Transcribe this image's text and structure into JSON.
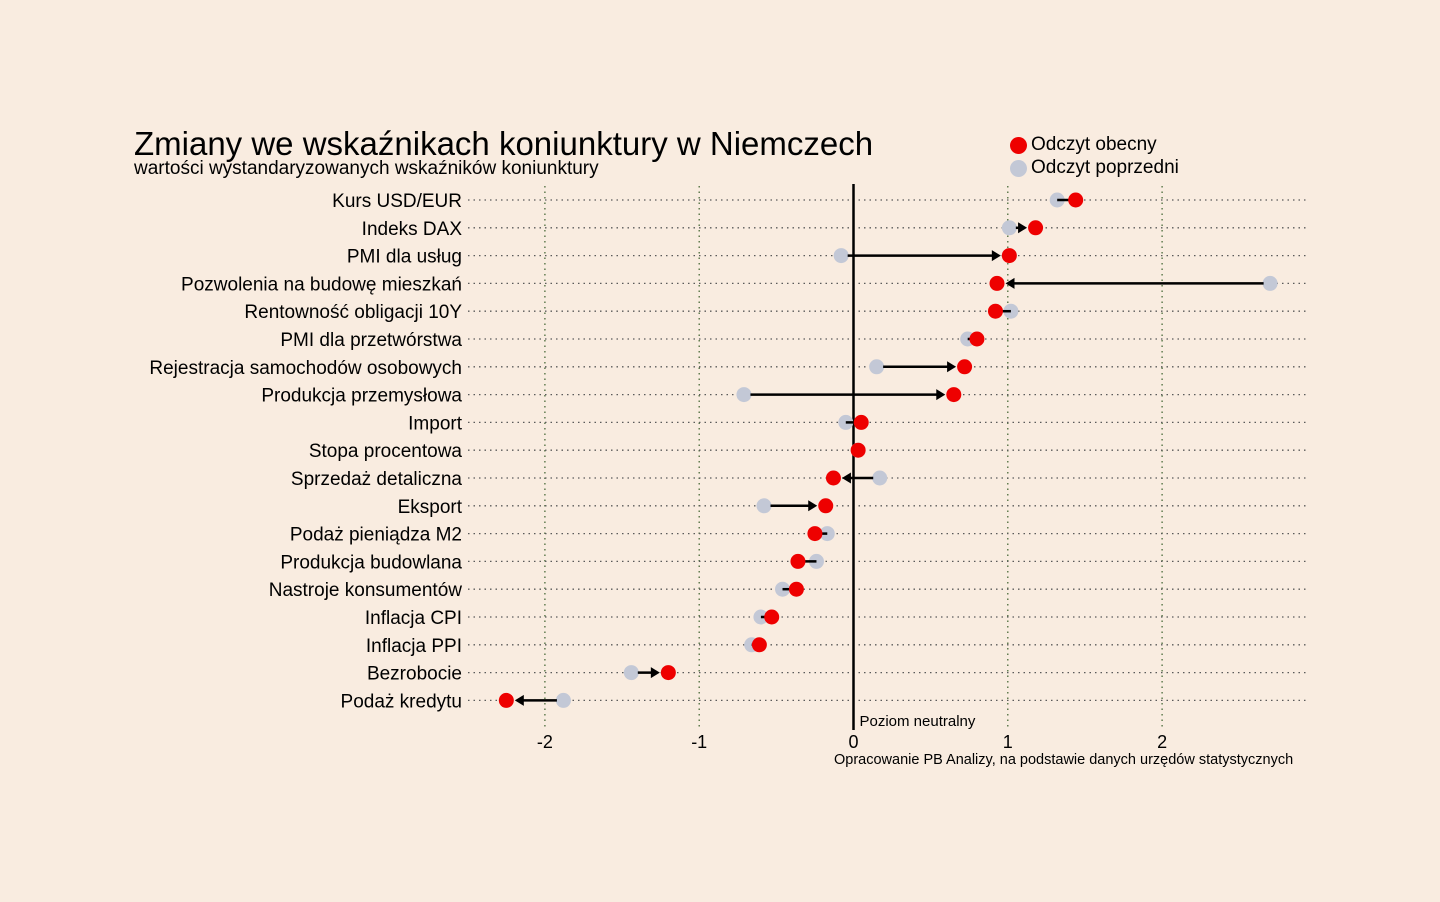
{
  "title": "Zmiany we wskaźnikach koniunktury w Niemczech",
  "subtitle": "wartości wystandaryzowanych wskaźników koniunktury",
  "source": "Opracowanie PB Analizy, na podstawie danych urzędów statystycznych",
  "legend": {
    "current_label": "Odczyt obecny",
    "previous_label": "Odczyt poprzedni"
  },
  "colors": {
    "background": "#f9ece0",
    "current": "#ee0000",
    "previous": "#c3c8d6",
    "line": "#000000"
  },
  "chart_data": {
    "type": "dumbbell",
    "title": "Zmiany we wskaźnikach koniunktury w Niemczech",
    "subtitle": "wartości wystandaryzowanych wskaźników koniunktury",
    "xlim": [
      -2.45,
      2.95
    ],
    "xticks": [
      -2,
      -1,
      0,
      1,
      2
    ],
    "xtick_labels": [
      "-2",
      "-1",
      "0",
      "1",
      "2"
    ],
    "reference_line": {
      "x": 0,
      "label": "Poziom neutralny"
    },
    "grid": "dotted",
    "legend_position": "top-right",
    "series": [
      {
        "name": "Odczyt obecny",
        "key": "current"
      },
      {
        "name": "Odczyt poprzedni",
        "key": "previous"
      }
    ],
    "rows": [
      {
        "label": "Kurs USD/EUR",
        "previous": 1.32,
        "current": 1.44
      },
      {
        "label": "Indeks DAX",
        "previous": 1.01,
        "current": 1.18
      },
      {
        "label": "PMI dla usług",
        "previous": -0.08,
        "current": 1.01
      },
      {
        "label": "Pozwolenia na budowę mieszkań",
        "previous": 2.7,
        "current": 0.93
      },
      {
        "label": "Rentowność obligacji 10Y",
        "previous": 1.02,
        "current": 0.92
      },
      {
        "label": "PMI dla przetwórstwa",
        "previous": 0.74,
        "current": 0.8
      },
      {
        "label": "Rejestracja samochodów osobowych",
        "previous": 0.15,
        "current": 0.72
      },
      {
        "label": "Produkcja przemysłowa",
        "previous": -0.71,
        "current": 0.65
      },
      {
        "label": "Import",
        "previous": -0.05,
        "current": 0.05
      },
      {
        "label": "Stopa procentowa",
        "previous": 0.03,
        "current": 0.03
      },
      {
        "label": "Sprzedaż detaliczna",
        "previous": 0.17,
        "current": -0.13
      },
      {
        "label": "Eksport",
        "previous": -0.58,
        "current": -0.18
      },
      {
        "label": "Podaż pieniądza M2",
        "previous": -0.17,
        "current": -0.25
      },
      {
        "label": "Produkcja budowlana",
        "previous": -0.24,
        "current": -0.36
      },
      {
        "label": "Nastroje konsumentów",
        "previous": -0.46,
        "current": -0.37
      },
      {
        "label": "Inflacja CPI",
        "previous": -0.6,
        "current": -0.53
      },
      {
        "label": "Inflacja PPI",
        "previous": -0.66,
        "current": -0.61
      },
      {
        "label": "Bezrobocie",
        "previous": -1.44,
        "current": -1.2
      },
      {
        "label": "Podaż kredytu",
        "previous": -1.88,
        "current": -2.25
      }
    ]
  }
}
